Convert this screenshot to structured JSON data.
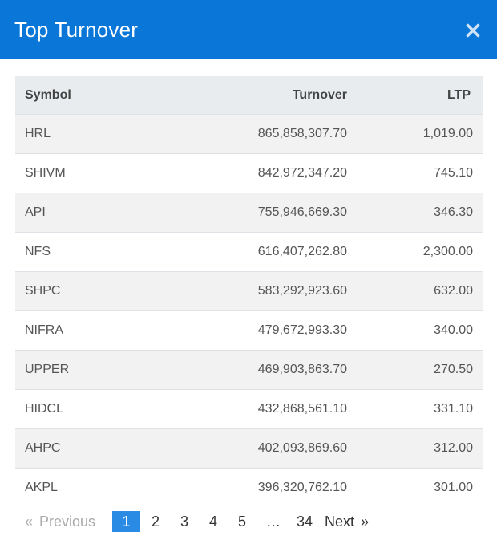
{
  "modal": {
    "title": "Top Turnover",
    "close_icon": "close-icon"
  },
  "table": {
    "headers": {
      "symbol": "Symbol",
      "turnover": "Turnover",
      "ltp": "LTP"
    },
    "rows": [
      {
        "symbol": "HRL",
        "turnover": "865,858,307.70",
        "ltp": "1,019.00"
      },
      {
        "symbol": "SHIVM",
        "turnover": "842,972,347.20",
        "ltp": "745.10"
      },
      {
        "symbol": "API",
        "turnover": "755,946,669.30",
        "ltp": "346.30"
      },
      {
        "symbol": "NFS",
        "turnover": "616,407,262.80",
        "ltp": "2,300.00"
      },
      {
        "symbol": "SHPC",
        "turnover": "583,292,923.60",
        "ltp": "632.00"
      },
      {
        "symbol": "NIFRA",
        "turnover": "479,672,993.30",
        "ltp": "340.00"
      },
      {
        "symbol": "UPPER",
        "turnover": "469,903,863.70",
        "ltp": "270.50"
      },
      {
        "symbol": "HIDCL",
        "turnover": "432,868,561.10",
        "ltp": "331.10"
      },
      {
        "symbol": "AHPC",
        "turnover": "402,093,869.60",
        "ltp": "312.00"
      },
      {
        "symbol": "AKPL",
        "turnover": "396,320,762.10",
        "ltp": "301.00"
      }
    ]
  },
  "pagination": {
    "previous_label": "Previous",
    "prev_glyph": "«",
    "pages": [
      "1",
      "2",
      "3",
      "4",
      "5"
    ],
    "active_page": "1",
    "ellipsis": "…",
    "last_page": "34",
    "next_label": "Next",
    "next_glyph": "»"
  }
}
